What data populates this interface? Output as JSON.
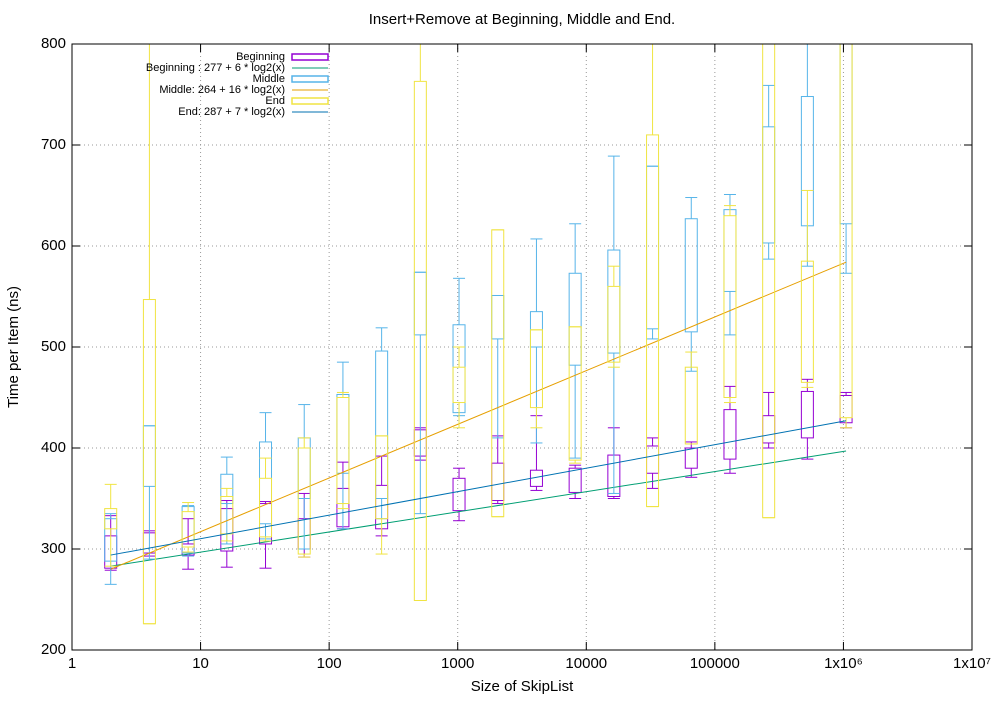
{
  "chart_data": {
    "type": "candlestick",
    "title": "Insert+Remove at Beginning, Middle and End.",
    "x_label": "Size of SkipList",
    "y_label": "Time per Item (ns)",
    "log_x": true,
    "grid": true,
    "legend": "top-left",
    "x": [
      2,
      4,
      8,
      16,
      32,
      64,
      128,
      256,
      512,
      1024,
      2048,
      4096,
      8192,
      16384,
      32768,
      65536,
      131072,
      262144,
      524288,
      1048576
    ],
    "xlim": [
      1,
      10000000
    ],
    "xticks": [
      1,
      10,
      100,
      1000,
      10000,
      100000,
      {
        "value": 1000000,
        "label": "1x10⁶"
      },
      {
        "value": 10000000,
        "label": "1x10⁷"
      }
    ],
    "ylim": [
      200,
      800
    ],
    "yticks": [
      200,
      300,
      400,
      500,
      600,
      700,
      800
    ],
    "series": [
      {
        "name": "Beginning",
        "kind": "box",
        "color": "#9400d3",
        "low": [
          279,
          293,
          280,
          282,
          281,
          292,
          320,
          313,
          388,
          328,
          345,
          358,
          350,
          350,
          360,
          371,
          375,
          400,
          389,
          420
        ],
        "q1": [
          281,
          296,
          294,
          298,
          305,
          300,
          322,
          320,
          392,
          338,
          348,
          362,
          356,
          352,
          375,
          380,
          389,
          405,
          410,
          425
        ],
        "q3": [
          313,
          316,
          305,
          340,
          345,
          330,
          360,
          363,
          418,
          370,
          385,
          378,
          380,
          393,
          402,
          400,
          438,
          432,
          456,
          452
        ],
        "high": [
          333,
          318,
          330,
          348,
          347,
          355,
          386,
          392,
          420,
          380,
          412,
          432,
          383,
          420,
          410,
          406,
          461,
          455,
          468,
          455
        ]
      },
      {
        "name": "Beginning : 277 + 6 * log2(x)",
        "kind": "fit",
        "color": "#009e73",
        "intercept": 277,
        "slope": 6
      },
      {
        "name": "Middle",
        "kind": "box",
        "color": "#56b4e9",
        "low": [
          265,
          290,
          293,
          305,
          310,
          300,
          320,
          330,
          335,
          432,
          410,
          405,
          390,
          355,
          508,
          476,
          512,
          587,
          580,
          573
        ],
        "q1": [
          288,
          362,
          296,
          345,
          325,
          350,
          375,
          350,
          512,
          435,
          508,
          500,
          482,
          494,
          518,
          515,
          555,
          603,
          620,
          622
        ],
        "q3": [
          330,
          422,
          342,
          374,
          406,
          410,
          453,
          496,
          574,
          522,
          551,
          535,
          573,
          596,
          679,
          627,
          636,
          718,
          748,
          830
        ],
        "high": [
          335,
          422,
          343,
          391,
          435,
          443,
          485,
          519,
          574,
          568,
          551,
          607,
          622,
          689,
          679,
          648,
          651,
          759,
          830,
          850
        ]
      },
      {
        "name": "Middle: 264 + 16 * log2(x)",
        "kind": "fit",
        "color": "#e69f00",
        "intercept": 264,
        "slope": 16
      },
      {
        "name": "End",
        "kind": "box",
        "color": "#f0e442",
        "low": [
          283,
          226,
          297,
          308,
          308,
          292,
          340,
          295,
          249,
          420,
          332,
          420,
          385,
          480,
          342,
          404,
          445,
          331,
          460,
          420
        ],
        "q1": [
          320,
          226,
          302,
          315,
          312,
          295,
          345,
          330,
          249,
          445,
          332,
          440,
          388,
          485,
          342,
          404,
          450,
          331,
          465,
          430
        ],
        "q3": [
          340,
          547,
          337,
          352,
          370,
          400,
          450,
          412,
          763,
          480,
          616,
          517,
          520,
          560,
          710,
          480,
          630,
          830,
          585,
          830
        ],
        "high": [
          364,
          850,
          346,
          360,
          390,
          410,
          455,
          412,
          850,
          500,
          616,
          517,
          520,
          580,
          850,
          495,
          640,
          850,
          655,
          850
        ]
      },
      {
        "name": "End: 287 + 7 * log2(x)",
        "kind": "fit",
        "color": "#0072b2",
        "intercept": 287,
        "slope": 7
      }
    ]
  }
}
